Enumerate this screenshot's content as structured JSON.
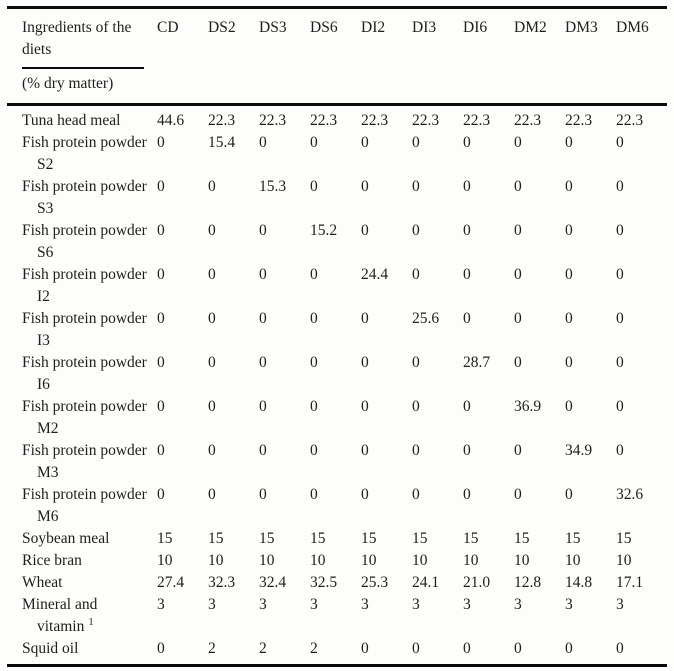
{
  "table": {
    "header": {
      "col_group_title": "Ingredients of the diets",
      "col_group_subtitle": "(% dry matter)",
      "columns": [
        "CD",
        "DS2",
        "DS3",
        "DS6",
        "DI2",
        "DI3",
        "DI6",
        "DM2",
        "DM3",
        "DM6"
      ]
    },
    "rows": [
      {
        "label": "Tuna head meal",
        "values": [
          "44.6",
          "22.3",
          "22.3",
          "22.3",
          "22.3",
          "22.3",
          "22.3",
          "22.3",
          "22.3",
          "22.3"
        ]
      },
      {
        "label": "Fish protein powder S2",
        "values": [
          "0",
          "15.4",
          "0",
          "0",
          "0",
          "0",
          "0",
          "0",
          "0",
          "0"
        ]
      },
      {
        "label": "Fish protein powder S3",
        "values": [
          "0",
          "0",
          "15.3",
          "0",
          "0",
          "0",
          "0",
          "0",
          "0",
          "0"
        ]
      },
      {
        "label": "Fish protein powder S6",
        "values": [
          "0",
          "0",
          "0",
          "15.2",
          "0",
          "0",
          "0",
          "0",
          "0",
          "0"
        ]
      },
      {
        "label": "Fish protein powder I2",
        "values": [
          "0",
          "0",
          "0",
          "0",
          "24.4",
          "0",
          "0",
          "0",
          "0",
          "0"
        ]
      },
      {
        "label": "Fish protein powder I3",
        "values": [
          "0",
          "0",
          "0",
          "0",
          "0",
          "25.6",
          "0",
          "0",
          "0",
          "0"
        ]
      },
      {
        "label": "Fish protein powder I6",
        "values": [
          "0",
          "0",
          "0",
          "0",
          "0",
          "0",
          "28.7",
          "0",
          "0",
          "0"
        ]
      },
      {
        "label": "Fish protein powder M2",
        "values": [
          "0",
          "0",
          "0",
          "0",
          "0",
          "0",
          "0",
          "36.9",
          "0",
          "0"
        ]
      },
      {
        "label": "Fish protein powder M3",
        "values": [
          "0",
          "0",
          "0",
          "0",
          "0",
          "0",
          "0",
          "0",
          "34.9",
          "0"
        ]
      },
      {
        "label": "Fish protein powder M6",
        "values": [
          "0",
          "0",
          "0",
          "0",
          "0",
          "0",
          "0",
          "0",
          "0",
          "32.6"
        ]
      },
      {
        "label": "Soybean meal",
        "values": [
          "15",
          "15",
          "15",
          "15",
          "15",
          "15",
          "15",
          "15",
          "15",
          "15"
        ]
      },
      {
        "label": "Rice bran",
        "values": [
          "10",
          "10",
          "10",
          "10",
          "10",
          "10",
          "10",
          "10",
          "10",
          "10"
        ]
      },
      {
        "label": "Wheat",
        "values": [
          "27.4",
          "32.3",
          "32.4",
          "32.5",
          "25.3",
          "24.1",
          "21.0",
          "12.8",
          "14.8",
          "17.1"
        ]
      },
      {
        "label": "Mineral and vitamin",
        "sup": "1",
        "values": [
          "3",
          "3",
          "3",
          "3",
          "3",
          "3",
          "3",
          "3",
          "3",
          "3"
        ]
      },
      {
        "label": "Squid oil",
        "values": [
          "0",
          "2",
          "2",
          "2",
          "0",
          "0",
          "0",
          "0",
          "0",
          "0"
        ]
      }
    ]
  }
}
